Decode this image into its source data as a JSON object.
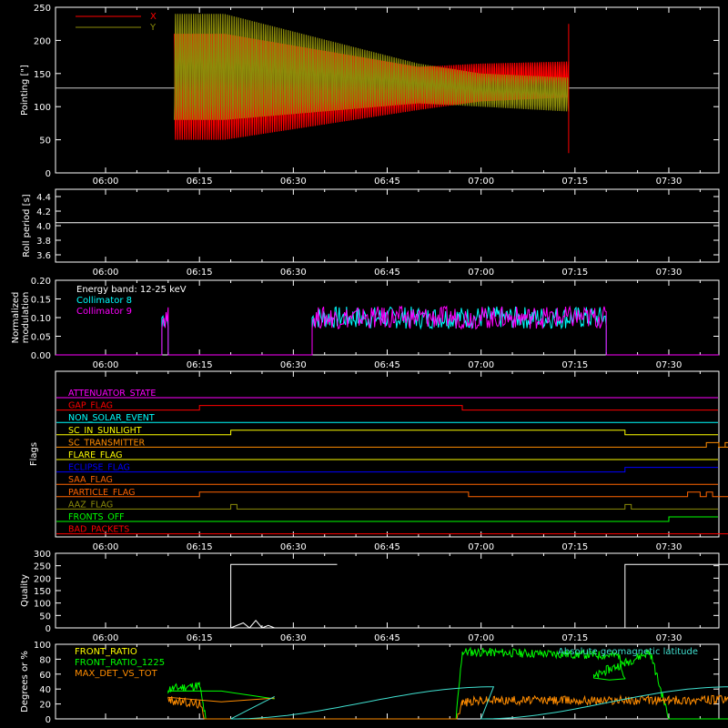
{
  "time_axis": {
    "range": [
      "05:52",
      "07:38"
    ],
    "tick_labels": [
      "06:00",
      "06:15",
      "06:30",
      "06:45",
      "07:00",
      "07:15",
      "07:30"
    ]
  },
  "colors": {
    "background": "#000000",
    "frame": "#ffffff",
    "x_red": "#ff0000",
    "y_olive": "#8c8c0a",
    "cyan": "#00ffff",
    "magenta": "#ff00ff",
    "green": "#00ff00",
    "orange": "#ff8c00",
    "light_cyan": "#40e0d0",
    "yellow": "#ffff00",
    "blue": "#0000ff",
    "dark_orange": "#ff6400"
  },
  "chart_data": [
    {
      "id": "pointing",
      "type": "line",
      "ylabel": "Pointing [\"]",
      "ylim": [
        0,
        250
      ],
      "yticks": [
        "0",
        "50",
        "100",
        "150",
        "200",
        "250"
      ],
      "legend": [
        {
          "name": "X",
          "color": "#ff0000"
        },
        {
          "name": "Y",
          "color": "#8c8c0a"
        }
      ],
      "baseline": 128,
      "active_window": [
        "06:11",
        "07:14"
      ],
      "series": [
        {
          "name": "X",
          "upper_envelope": [
            [
              6.19,
              210
            ],
            [
              6.5,
              160
            ],
            [
              7.0,
              165
            ],
            [
              7.23,
              170
            ]
          ],
          "lower_envelope": [
            [
              6.19,
              50
            ],
            [
              6.5,
              95
            ],
            [
              7.0,
              108
            ],
            [
              7.23,
              118
            ]
          ]
        },
        {
          "name": "Y",
          "upper_envelope": [
            [
              6.19,
              240
            ],
            [
              6.5,
              165
            ],
            [
              7.0,
              150
            ],
            [
              7.23,
              140
            ]
          ],
          "lower_envelope": [
            [
              6.19,
              80
            ],
            [
              6.5,
              105
            ],
            [
              7.0,
              100
            ],
            [
              7.23,
              88
            ]
          ]
        }
      ]
    },
    {
      "id": "roll",
      "type": "line",
      "ylabel": "Roll period [s]",
      "ylim": [
        3.5,
        4.5
      ],
      "yticks": [
        "3.6",
        "3.8",
        "4.0",
        "4.2",
        "4.4"
      ],
      "series": [
        {
          "name": "",
          "value": 4.04
        }
      ]
    },
    {
      "id": "modulation",
      "type": "line",
      "ylabel": "Normalized modulation",
      "ylim": [
        0,
        0.2
      ],
      "yticks": [
        "0.00",
        "0.05",
        "0.10",
        "0.15",
        "0.20"
      ],
      "annotation": "Energy band: 12-25 keV",
      "legend": [
        {
          "name": "Collimator 8",
          "color": "#00ffff"
        },
        {
          "name": "Collimator 9",
          "color": "#ff00ff"
        }
      ],
      "active_windows": [
        [
          "06:09",
          "06:10"
        ],
        [
          "06:33",
          "07:20"
        ]
      ],
      "level": 0.1
    },
    {
      "id": "flags",
      "type": "line",
      "ylabel": "Flags",
      "flags": [
        {
          "name": "ATTENUATOR_STATE",
          "color": "#ff00ff",
          "steps": []
        },
        {
          "name": "GAP_FLAG",
          "color": "#ff0000",
          "steps": [
            [
              6.15,
              1
            ],
            [
              6.57,
              0
            ]
          ]
        },
        {
          "name": "NON_SOLAR_EVENT",
          "color": "#00ffff",
          "steps": []
        },
        {
          "name": "SC_IN_SUNLIGHT",
          "color": "#ffff00",
          "steps": [
            [
              6.2,
              1
            ],
            [
              7.23,
              0
            ]
          ]
        },
        {
          "name": "SC_TRANSMITTER",
          "color": "#ff8c00",
          "steps": [
            [
              7.36,
              1
            ],
            [
              7.38,
              0
            ],
            [
              7.39,
              1
            ],
            [
              7.42,
              0
            ],
            [
              7.52,
              1
            ],
            [
              7.55,
              0
            ]
          ]
        },
        {
          "name": "FLARE_FLAG",
          "color": "#ffff00",
          "steps": []
        },
        {
          "name": "ECLIPSE_FLAG",
          "color": "#0000ff",
          "steps": [
            [
              6.2,
              0
            ],
            [
              7.23,
              1
            ]
          ]
        },
        {
          "name": "SAA_FLAG",
          "color": "#ff6400",
          "steps": [
            [
              6.53,
              0
            ]
          ]
        },
        {
          "name": "PARTICLE_FLAG",
          "color": "#ff6400",
          "steps": [
            [
              6.15,
              1
            ],
            [
              6.58,
              0
            ],
            [
              7.33,
              1
            ],
            [
              7.35,
              0
            ],
            [
              7.36,
              1
            ],
            [
              7.37,
              0
            ],
            [
              7.53,
              1
            ],
            [
              7.55,
              0
            ]
          ]
        },
        {
          "name": "AAZ_FLAG",
          "color": "#8c8c0a",
          "steps": [
            [
              6.2,
              1
            ],
            [
              6.21,
              0
            ],
            [
              7.23,
              1
            ],
            [
              7.24,
              0
            ]
          ]
        },
        {
          "name": "FRONTS_OFF",
          "color": "#00ff00",
          "steps": [
            [
              6.15,
              0
            ],
            [
              7.3,
              1
            ]
          ]
        },
        {
          "name": "BAD_PACKETS",
          "color": "#ff0000",
          "steps": [
            [
              7.6,
              1
            ],
            [
              7.61,
              0
            ]
          ]
        }
      ]
    },
    {
      "id": "quality",
      "type": "line",
      "ylabel": "Quality",
      "ylim": [
        0,
        300
      ],
      "yticks": [
        "0",
        "50",
        "100",
        "150",
        "200",
        "250",
        "300"
      ],
      "series": [
        {
          "name": "",
          "points": [
            [
              5.97,
              255
            ],
            [
              6.2,
              255
            ],
            [
              6.2,
              0
            ],
            [
              6.22,
              20
            ],
            [
              6.23,
              0
            ],
            [
              6.24,
              30
            ],
            [
              6.25,
              0
            ],
            [
              6.26,
              10
            ],
            [
              6.27,
              0
            ],
            [
              7.23,
              0
            ],
            [
              7.23,
              255
            ],
            [
              7.63,
              255
            ]
          ]
        }
      ]
    },
    {
      "id": "ratios",
      "type": "line",
      "ylabel": "Degrees or %",
      "ylim": [
        0,
        100
      ],
      "yticks": [
        "0",
        "20",
        "40",
        "60",
        "80",
        "100"
      ],
      "legend": [
        {
          "name": "FRONT_RATIO",
          "color": "#ffff00"
        },
        {
          "name": "FRONT_RATIO_1225",
          "color": "#00ff00"
        },
        {
          "name": "MAX_DET_VS_TOT",
          "color": "#ff8c00"
        }
      ],
      "annotation": "Absolute geomagnetic latitude",
      "series": [
        {
          "name": "FRONT_RATIO_1225",
          "points": [
            [
              5.87,
              25
            ],
            [
              6.1,
              40
            ],
            [
              6.15,
              45
            ],
            [
              6.16,
              0
            ],
            [
              6.56,
              0
            ],
            [
              6.57,
              90
            ],
            [
              6.82,
              85
            ],
            [
              6.83,
              55
            ],
            [
              7.18,
              55
            ],
            [
              7.2,
              65
            ],
            [
              7.23,
              75
            ],
            [
              7.27,
              90
            ],
            [
              7.3,
              0
            ],
            [
              7.63,
              0
            ]
          ]
        },
        {
          "name": "MAX_DET_VS_TOT",
          "points": [
            [
              5.87,
              30
            ],
            [
              6.1,
              25
            ],
            [
              6.15,
              20
            ],
            [
              6.16,
              0
            ],
            [
              6.56,
              0
            ],
            [
              6.57,
              22
            ],
            [
              7.0,
              25
            ],
            [
              7.3,
              25
            ],
            [
              7.63,
              28
            ]
          ]
        },
        {
          "name": "Absolute geomagnetic latitude",
          "points": [
            [
              5.87,
              30
            ],
            [
              6.2,
              0
            ],
            [
              6.62,
              43
            ],
            [
              7.0,
              0
            ],
            [
              7.4,
              43
            ],
            [
              7.63,
              25
            ]
          ]
        }
      ]
    }
  ]
}
